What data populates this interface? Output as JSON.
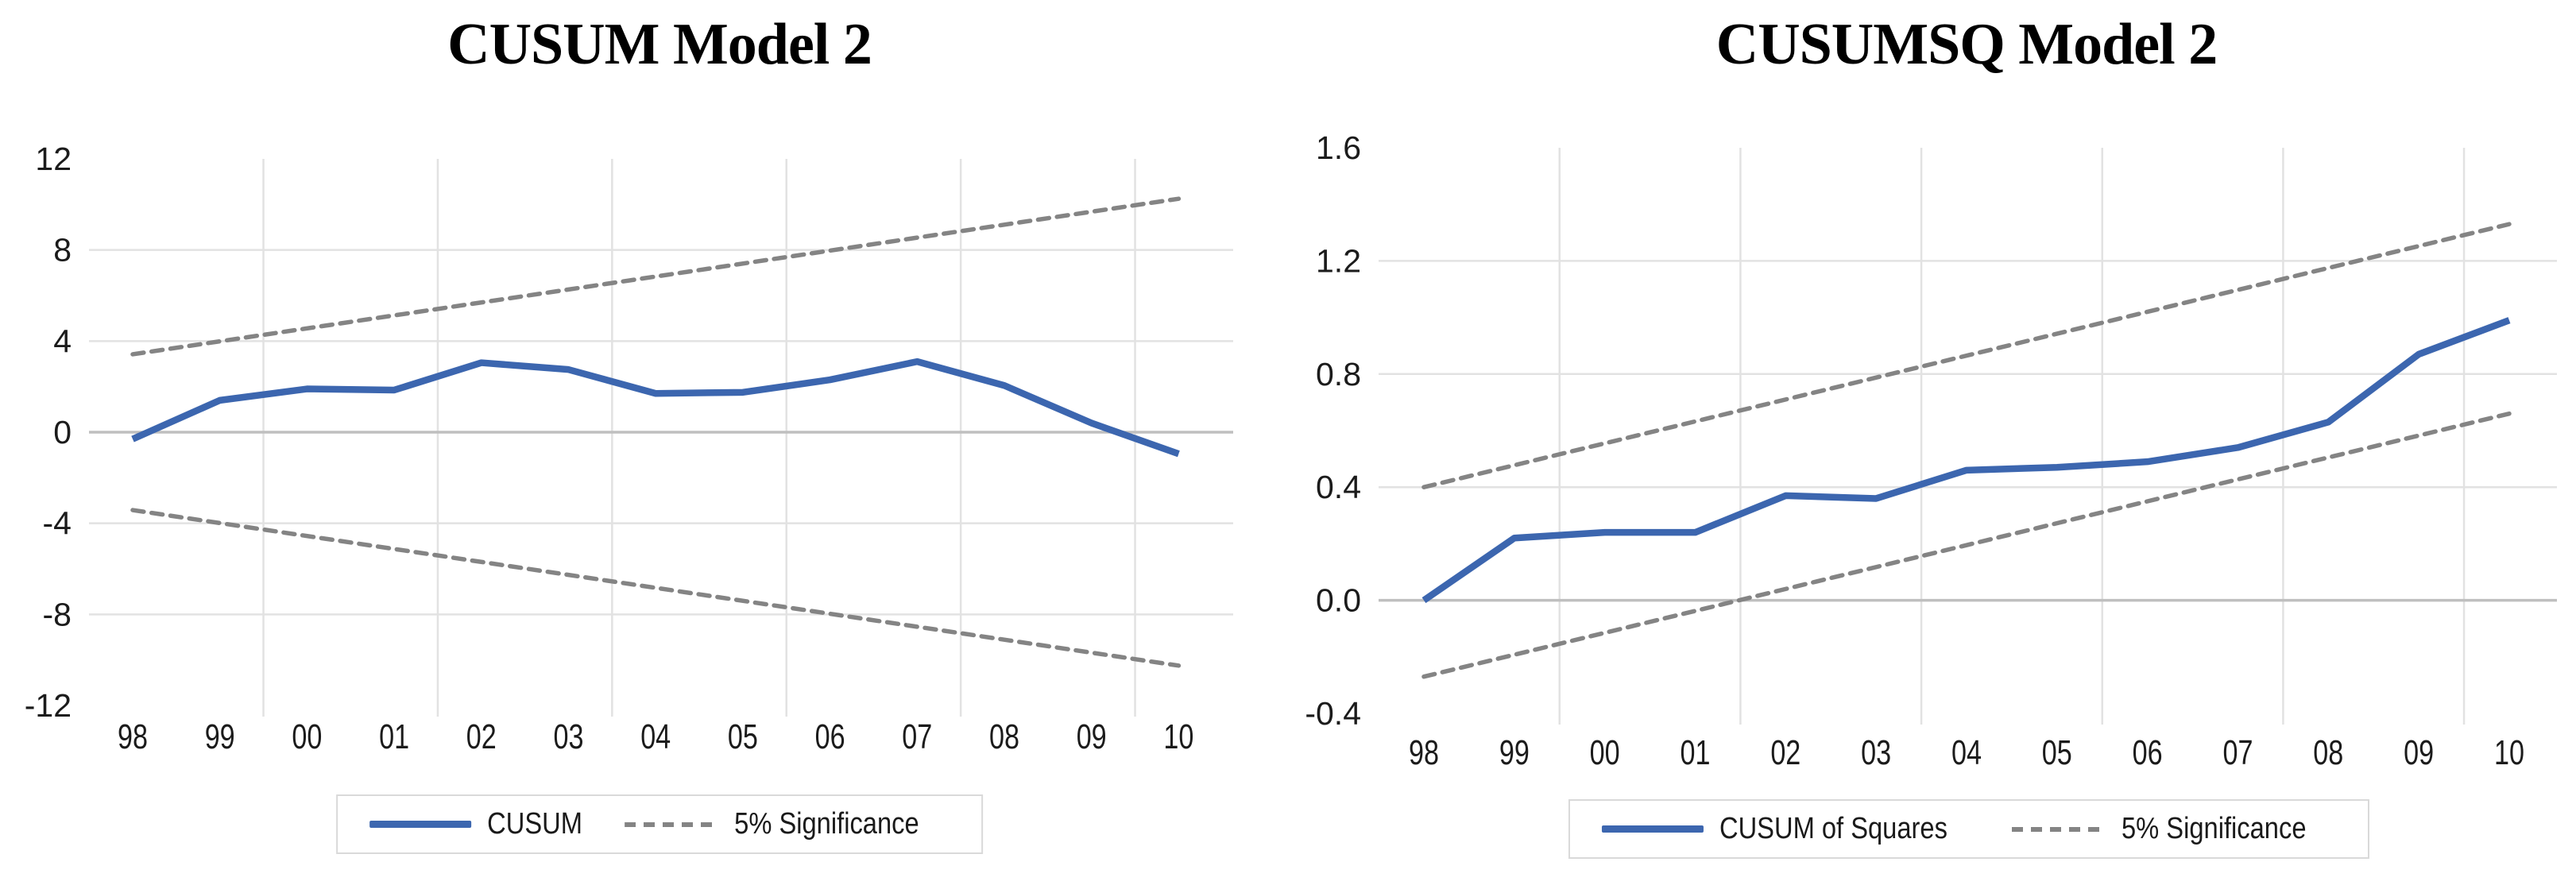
{
  "figure": {
    "background": "#ffffff",
    "colors": {
      "series_blue": "#3c66af",
      "significance_gray": "#848484",
      "gridline": "#e2e2e2",
      "zero_line": "#bfbfbf",
      "tick_text": "#1b1b1b"
    }
  },
  "chart_data": [
    {
      "type": "line",
      "title": "CUSUM Model 2",
      "categories": [
        "98",
        "99",
        "00",
        "01",
        "02",
        "03",
        "04",
        "05",
        "06",
        "07",
        "08",
        "09",
        "10"
      ],
      "xlabel": "",
      "ylabel": "",
      "ylim": [
        -12,
        12
      ],
      "y_ticks": [
        {
          "label": "12",
          "value": 12
        },
        {
          "label": "8",
          "value": 8
        },
        {
          "label": "4",
          "value": 4
        },
        {
          "label": "0",
          "value": 0
        },
        {
          "label": "-4",
          "value": -4
        },
        {
          "label": "-8",
          "value": -8
        },
        {
          "label": "-12",
          "value": -12
        }
      ],
      "y_gridlines": [
        8,
        4,
        -4,
        -8
      ],
      "zero_line_value": 0,
      "x_gridline_positions": [
        1.5,
        3.5,
        5.5,
        7.5,
        9.5,
        11.5
      ],
      "grid": true,
      "series": [
        {
          "name": "CUSUM",
          "style": "solid",
          "color_key": "series_blue",
          "values": [
            -0.3,
            1.4,
            1.9,
            1.85,
            3.05,
            2.75,
            1.7,
            1.75,
            2.3,
            3.1,
            2.05,
            0.4,
            -0.95
          ]
        }
      ],
      "significance_bounds": {
        "name": "5% Significance",
        "style": "dashed",
        "color_key": "significance_gray",
        "upper": {
          "start": 3.42,
          "end": 10.25
        },
        "lower": {
          "start": -3.42,
          "end": -10.25
        }
      },
      "legend": {
        "position": "bottom",
        "items": [
          {
            "label": "CUSUM",
            "swatch": "solid",
            "color_key": "series_blue"
          },
          {
            "label": "5% Significance",
            "swatch": "dashed",
            "color_key": "significance_gray"
          }
        ]
      }
    },
    {
      "type": "line",
      "title": "CUSUMSQ Model 2",
      "categories": [
        "98",
        "99",
        "00",
        "01",
        "02",
        "03",
        "04",
        "05",
        "06",
        "07",
        "08",
        "09",
        "10"
      ],
      "xlabel": "",
      "ylabel": "",
      "ylim": [
        -0.4,
        1.6
      ],
      "y_ticks": [
        {
          "label": "1.6",
          "value": 1.6
        },
        {
          "label": "1.2",
          "value": 1.2
        },
        {
          "label": "0.8",
          "value": 0.8
        },
        {
          "label": "0.4",
          "value": 0.4
        },
        {
          "label": "0.0",
          "value": 0.0
        },
        {
          "label": "-0.4",
          "value": -0.4
        }
      ],
      "y_gridlines": [
        1.2,
        0.8,
        0.4
      ],
      "zero_line_value": 0,
      "x_gridline_positions": [
        1.5,
        3.5,
        5.5,
        7.5,
        9.5,
        11.5
      ],
      "grid": true,
      "series": [
        {
          "name": "CUSUM of Squares",
          "style": "solid",
          "color_key": "series_blue",
          "values": [
            0.0,
            0.22,
            0.24,
            0.24,
            0.37,
            0.36,
            0.46,
            0.47,
            0.49,
            0.54,
            0.63,
            0.87,
            0.99
          ]
        }
      ],
      "significance_bounds": {
        "name": "5% Significance",
        "style": "dashed",
        "color_key": "significance_gray",
        "upper": {
          "start": 0.4,
          "end": 1.33
        },
        "lower": {
          "start": -0.27,
          "end": 0.66
        }
      },
      "legend": {
        "position": "bottom",
        "items": [
          {
            "label": "CUSUM of Squares",
            "swatch": "solid",
            "color_key": "series_blue"
          },
          {
            "label": "5% Significance",
            "swatch": "dashed",
            "color_key": "significance_gray"
          }
        ]
      }
    }
  ]
}
